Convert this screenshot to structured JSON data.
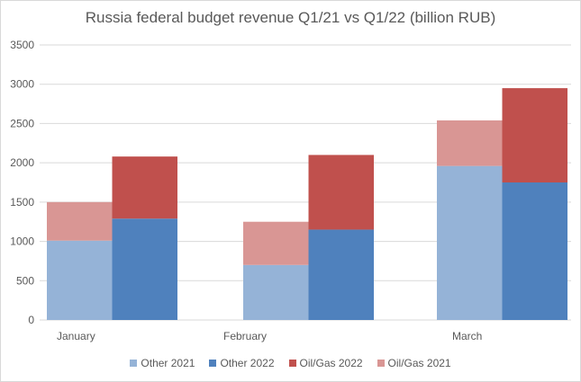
{
  "chart_data": {
    "type": "bar",
    "stacked": true,
    "title": "Russia federal budget revenue Q1/21 vs Q1/22 (billion RUB)",
    "xlabel": "",
    "ylabel": "",
    "ylim": [
      0,
      3500
    ],
    "yticks": [
      0,
      500,
      1000,
      1500,
      2000,
      2500,
      3000,
      3500
    ],
    "ytick_labels": [
      "0",
      "500",
      "1000",
      "1500",
      "2000",
      "2500",
      "3000",
      "3500"
    ],
    "grid": true,
    "legend_position": "bottom",
    "categories": [
      "January",
      "February",
      "March"
    ],
    "series": [
      {
        "name": "Other 2021",
        "stack": "2021",
        "color": "#95b3d7",
        "values": [
          1010,
          700,
          1960
        ]
      },
      {
        "name": "Other 2022",
        "stack": "2022",
        "color": "#4f81bd",
        "values": [
          1290,
          1150,
          1750
        ]
      },
      {
        "name": "Oil/Gas 2022",
        "stack": "2022",
        "color": "#c0504d",
        "values": [
          790,
          950,
          1200
        ]
      },
      {
        "name": "Oil/Gas 2021",
        "stack": "2021",
        "color": "#d99694",
        "values": [
          490,
          550,
          580
        ]
      }
    ]
  }
}
